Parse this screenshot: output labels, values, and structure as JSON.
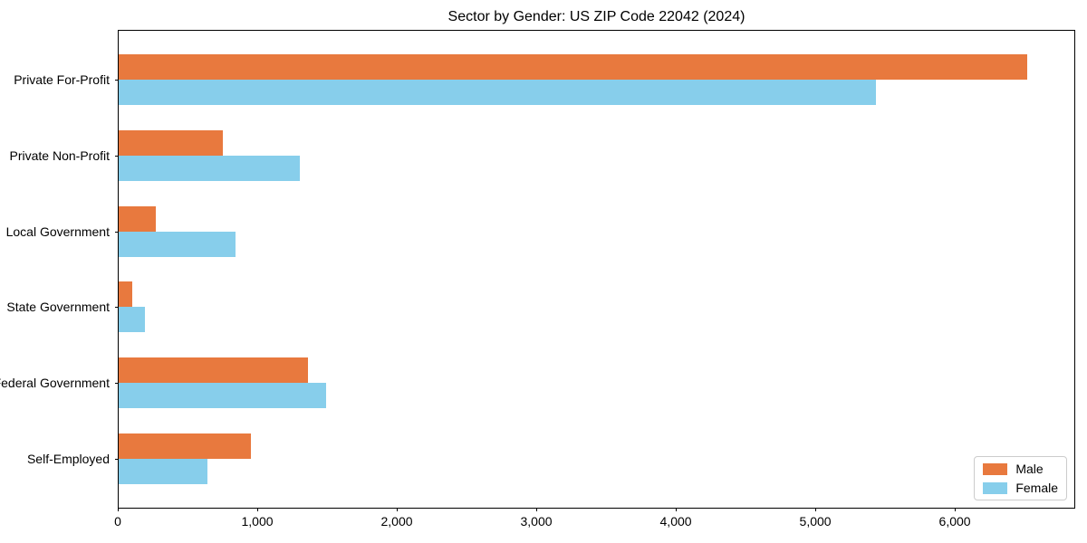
{
  "chart_data": {
    "type": "bar",
    "orientation": "horizontal",
    "title": "Sector by Gender: US ZIP Code 22042 (2024)",
    "categories": [
      "Private For-Profit",
      "Private Non-Profit",
      "Local Government",
      "State Government",
      "Federal Government",
      "Self-Employed"
    ],
    "series": [
      {
        "name": "Male",
        "color": "#e8793e",
        "values": [
          6510,
          745,
          265,
          95,
          1360,
          945
        ]
      },
      {
        "name": "Female",
        "color": "#87ceeb",
        "values": [
          5430,
          1300,
          840,
          190,
          1490,
          635
        ]
      }
    ],
    "xlim": [
      0,
      6850
    ],
    "x_ticks": [
      0,
      1000,
      2000,
      3000,
      4000,
      5000,
      6000
    ],
    "x_tick_labels": [
      "0",
      "1,000",
      "2,000",
      "3,000",
      "4,000",
      "5,000",
      "6,000"
    ],
    "xlabel": "",
    "ylabel": "",
    "grid": false,
    "legend": {
      "location": "lower right"
    },
    "colors": {
      "axis": "#000000",
      "legend_border": "#cccccc",
      "background": "#ffffff"
    }
  }
}
